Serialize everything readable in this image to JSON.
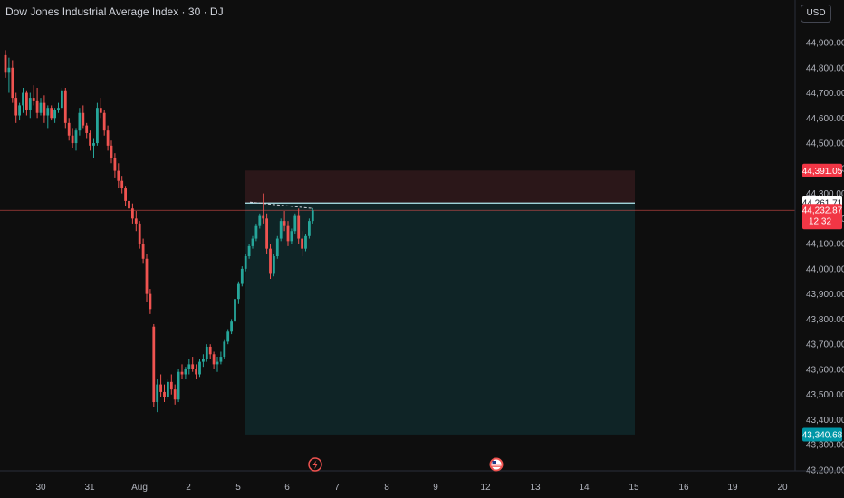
{
  "header": {
    "symbol_title": "Dow Jones Industrial Average Index · 30 · DJ",
    "currency_button": "USD"
  },
  "colors": {
    "background": "#0e0e0e",
    "up_candle": "#26a69a",
    "down_candle": "#ef5350",
    "stop_zone": "#2b1719",
    "target_zone": "#0f2426",
    "price_label_red": "#f23645",
    "price_label_cyan": "#0097a7",
    "price_label_white": "#ffffff",
    "entry_line": "#b2ebf2"
  },
  "chart_data": {
    "type": "candlestick",
    "y_axis_ticks": [
      "44,900.00",
      "44,800.00",
      "44,700.00",
      "44,600.00",
      "44,500.00",
      "44,400.00",
      "44,300.00",
      "44,200.00",
      "44,100.00",
      "44,000.00",
      "43,900.00",
      "43,800.00",
      "43,700.00",
      "43,600.00",
      "43,500.00",
      "43,400.00",
      "43,300.00",
      "43,200.00"
    ],
    "y_tick_values": [
      44900,
      44800,
      44700,
      44600,
      44500,
      44400,
      44300,
      44200,
      44100,
      44000,
      43900,
      43800,
      43700,
      43600,
      43500,
      43400,
      43300,
      43200
    ],
    "x_axis_ticks": [
      "30",
      "31",
      "Aug",
      "2",
      "5",
      "6",
      "7",
      "8",
      "9",
      "12",
      "13",
      "14",
      "15",
      "16",
      "19",
      "20"
    ],
    "price_labels": {
      "stop_loss": "44,391.05",
      "entry": "44,261.71",
      "last_price": "44,232.87",
      "countdown": "12:32",
      "take_profit": "43,340.68"
    },
    "position_tool": {
      "type": "short",
      "entry": 44261.71,
      "stop": 44391.05,
      "target": 43340.68
    },
    "candles_ohlc": [
      [
        44850,
        44870,
        44760,
        44780
      ],
      [
        44780,
        44840,
        44700,
        44800
      ],
      [
        44800,
        44830,
        44660,
        44680
      ],
      [
        44680,
        44700,
        44580,
        44610
      ],
      [
        44610,
        44660,
        44590,
        44650
      ],
      [
        44650,
        44720,
        44620,
        44700
      ],
      [
        44700,
        44710,
        44610,
        44630
      ],
      [
        44630,
        44700,
        44600,
        44680
      ],
      [
        44680,
        44730,
        44650,
        44670
      ],
      [
        44670,
        44720,
        44600,
        44620
      ],
      [
        44620,
        44680,
        44610,
        44660
      ],
      [
        44660,
        44690,
        44580,
        44610
      ],
      [
        44610,
        44650,
        44560,
        44640
      ],
      [
        44640,
        44650,
        44590,
        44600
      ],
      [
        44600,
        44640,
        44580,
        44630
      ],
      [
        44630,
        44660,
        44620,
        44640
      ],
      [
        44640,
        44720,
        44630,
        44710
      ],
      [
        44710,
        44720,
        44560,
        44580
      ],
      [
        44580,
        44600,
        44510,
        44530
      ],
      [
        44530,
        44560,
        44480,
        44500
      ],
      [
        44500,
        44560,
        44470,
        44550
      ],
      [
        44550,
        44640,
        44530,
        44620
      ],
      [
        44620,
        44650,
        44560,
        44570
      ],
      [
        44570,
        44580,
        44520,
        44540
      ],
      [
        44540,
        44550,
        44470,
        44490
      ],
      [
        44490,
        44520,
        44440,
        44500
      ],
      [
        44500,
        44660,
        44490,
        44640
      ],
      [
        44640,
        44680,
        44600,
        44620
      ],
      [
        44620,
        44630,
        44530,
        44550
      ],
      [
        44550,
        44570,
        44470,
        44490
      ],
      [
        44490,
        44510,
        44420,
        44440
      ],
      [
        44440,
        44460,
        44360,
        44390
      ],
      [
        44390,
        44420,
        44320,
        44350
      ],
      [
        44350,
        44370,
        44300,
        44320
      ],
      [
        44320,
        44330,
        44250,
        44270
      ],
      [
        44270,
        44290,
        44220,
        44240
      ],
      [
        44240,
        44260,
        44180,
        44200
      ],
      [
        44200,
        44230,
        44150,
        44180
      ],
      [
        44180,
        44190,
        44080,
        44100
      ],
      [
        44100,
        44120,
        44020,
        44040
      ],
      [
        44040,
        44060,
        43870,
        43900
      ],
      [
        43900,
        43920,
        43820,
        43840
      ],
      [
        43770,
        43780,
        43450,
        43470
      ],
      [
        43470,
        43560,
        43430,
        43540
      ],
      [
        43540,
        43580,
        43490,
        43510
      ],
      [
        43510,
        43540,
        43470,
        43490
      ],
      [
        43490,
        43560,
        43480,
        43550
      ],
      [
        43550,
        43580,
        43500,
        43520
      ],
      [
        43520,
        43540,
        43460,
        43480
      ],
      [
        43480,
        43600,
        43470,
        43590
      ],
      [
        43590,
        43620,
        43560,
        43580
      ],
      [
        43580,
        43610,
        43560,
        43600
      ],
      [
        43600,
        43640,
        43580,
        43620
      ],
      [
        43620,
        43650,
        43590,
        43600
      ],
      [
        43600,
        43620,
        43560,
        43580
      ],
      [
        43580,
        43640,
        43570,
        43630
      ],
      [
        43630,
        43660,
        43610,
        43640
      ],
      [
        43640,
        43700,
        43630,
        43690
      ],
      [
        43690,
        43700,
        43640,
        43660
      ],
      [
        43660,
        43670,
        43600,
        43620
      ],
      [
        43620,
        43650,
        43590,
        43630
      ],
      [
        43630,
        43670,
        43620,
        43650
      ],
      [
        43650,
        43720,
        43640,
        43710
      ],
      [
        43710,
        43760,
        43700,
        43750
      ],
      [
        43750,
        43800,
        43740,
        43790
      ],
      [
        43790,
        43890,
        43780,
        43880
      ],
      [
        43880,
        43950,
        43860,
        43940
      ],
      [
        43940,
        44010,
        43930,
        44000
      ],
      [
        44000,
        44060,
        43990,
        44050
      ],
      [
        44050,
        44100,
        44040,
        44090
      ],
      [
        44090,
        44130,
        44080,
        44120
      ],
      [
        44120,
        44180,
        44110,
        44170
      ],
      [
        44170,
        44220,
        44160,
        44210
      ],
      [
        44210,
        44300,
        44180,
        44200
      ],
      [
        44200,
        44220,
        44060,
        44080
      ],
      [
        44080,
        44100,
        43960,
        43980
      ],
      [
        43980,
        44060,
        43970,
        44050
      ],
      [
        44050,
        44130,
        44040,
        44120
      ],
      [
        44120,
        44200,
        44110,
        44190
      ],
      [
        44190,
        44230,
        44150,
        44170
      ],
      [
        44170,
        44190,
        44090,
        44110
      ],
      [
        44110,
        44160,
        44100,
        44150
      ],
      [
        44150,
        44220,
        44140,
        44210
      ],
      [
        44210,
        44240,
        44100,
        44120
      ],
      [
        44120,
        44150,
        44050,
        44080
      ],
      [
        44080,
        44140,
        44070,
        44130
      ],
      [
        44130,
        44200,
        44120,
        44190
      ],
      [
        44190,
        44240,
        44180,
        44232
      ]
    ],
    "last_price_value": 44232.87
  }
}
